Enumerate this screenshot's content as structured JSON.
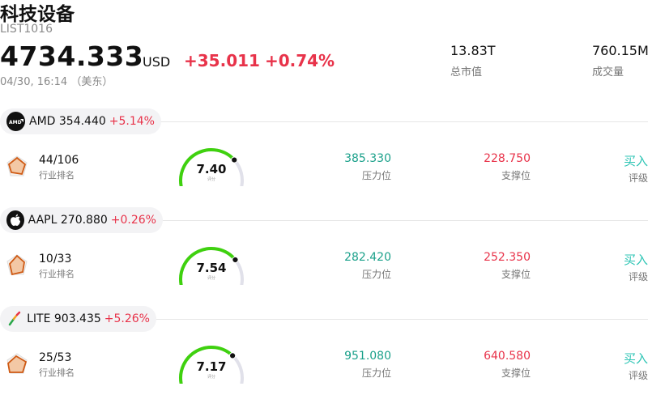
{
  "header": {
    "title": "科技设备",
    "code": "LIST1016",
    "price": "4734.333",
    "currency": "USD",
    "change": "+35.011",
    "change_pct": "+0.74%",
    "time": "04/30, 16:14 （美东）",
    "market_cap_value": "13.83T",
    "market_cap_label": "总市值",
    "volume_value": "760.15M",
    "volume_label": "成交量"
  },
  "stocks": [
    {
      "ticker_price": "AMD 354.440",
      "pct": "+5.14%",
      "logo_icon": "amd-logo-icon",
      "rank": "44/106",
      "rank_label": "行业排名",
      "score": "7.40",
      "score_fraction": 0.74,
      "score_label": "评分",
      "resistance": "385.330",
      "resistance_label": "压力位",
      "support": "228.750",
      "support_label": "支撑位",
      "rating": "买入",
      "rating_label": "评级"
    },
    {
      "ticker_price": "AAPL 270.880",
      "pct": "+0.26%",
      "logo_icon": "apple-logo-icon",
      "rank": "10/33",
      "rank_label": "行业排名",
      "score": "7.54",
      "score_fraction": 0.754,
      "score_label": "评分",
      "resistance": "282.420",
      "resistance_label": "压力位",
      "support": "252.350",
      "support_label": "支撑位",
      "rating": "买入",
      "rating_label": "评级"
    },
    {
      "ticker_price": "LITE 903.435",
      "pct": "+5.26%",
      "logo_icon": "lumentum-logo-icon",
      "rank": "25/53",
      "rank_label": "行业排名",
      "score": "7.17",
      "score_fraction": 0.717,
      "score_label": "评分",
      "resistance": "951.080",
      "resistance_label": "压力位",
      "support": "640.580",
      "support_label": "支撑位",
      "rating": "买入",
      "rating_label": "评级"
    }
  ],
  "colors": {
    "up": "#e8334a",
    "resistance": "#1aa08a",
    "buy": "#2cc4b4",
    "gauge_fill": "#3fd10f",
    "gauge_track": "#e1e1ea"
  }
}
